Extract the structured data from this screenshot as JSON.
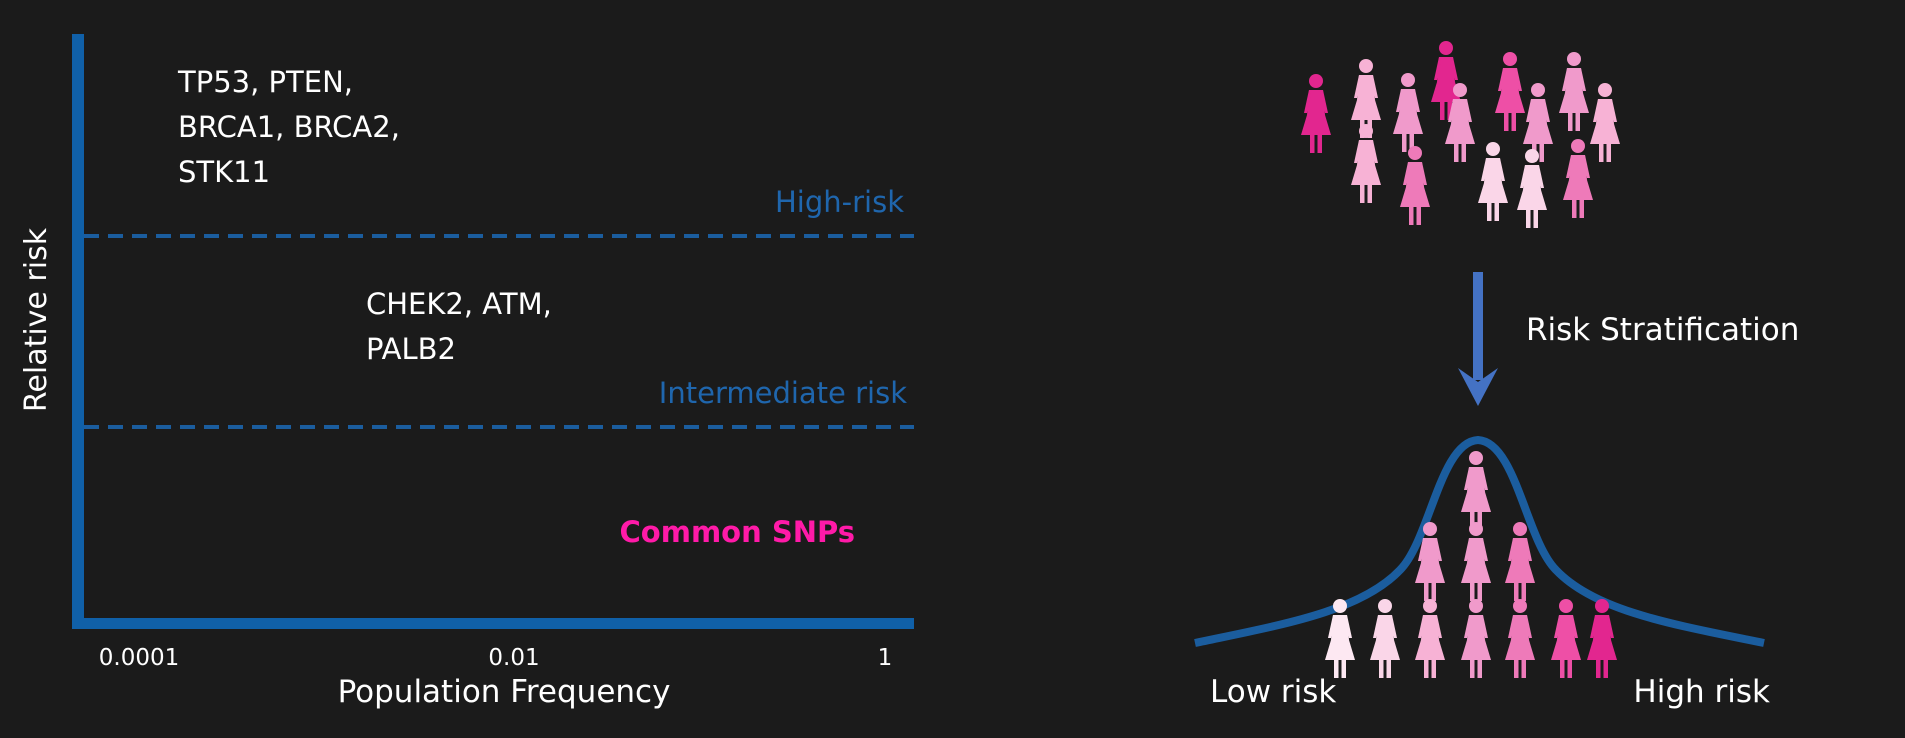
{
  "left_panel": {
    "y_axis_label": "Relative risk",
    "x_axis_label": "Population Frequency",
    "x_ticks": [
      "0.0001",
      "0.01",
      "1"
    ],
    "high_risk": {
      "line_label": "High-risk",
      "genes": [
        "TP53, PTEN,",
        "BRCA1, BRCA2,",
        "STK11"
      ]
    },
    "intermediate_risk": {
      "line_label": "Intermediate risk",
      "genes": [
        "CHEK2, ATM,",
        "PALB2"
      ]
    },
    "low_risk": {
      "label": "Common SNPs"
    }
  },
  "right_panel": {
    "arrow_label": "Risk Stratification",
    "low_label": "Low risk",
    "high_label": "High risk"
  },
  "colors": {
    "background": "#1b1b1b",
    "axis_blue": "#1060a8",
    "line_blue": "#1b5d9e",
    "text_blue": "#1f66ad",
    "arrow_blue": "#4472c4",
    "magenta": "#ff1aa8",
    "pink_dark": "#e2268f",
    "pink_mid": "#ee7ab9",
    "pink_light": "#f7b2d5",
    "pink_pale": "#fad6e8"
  },
  "icons": {
    "person": "female-figure-icon"
  }
}
